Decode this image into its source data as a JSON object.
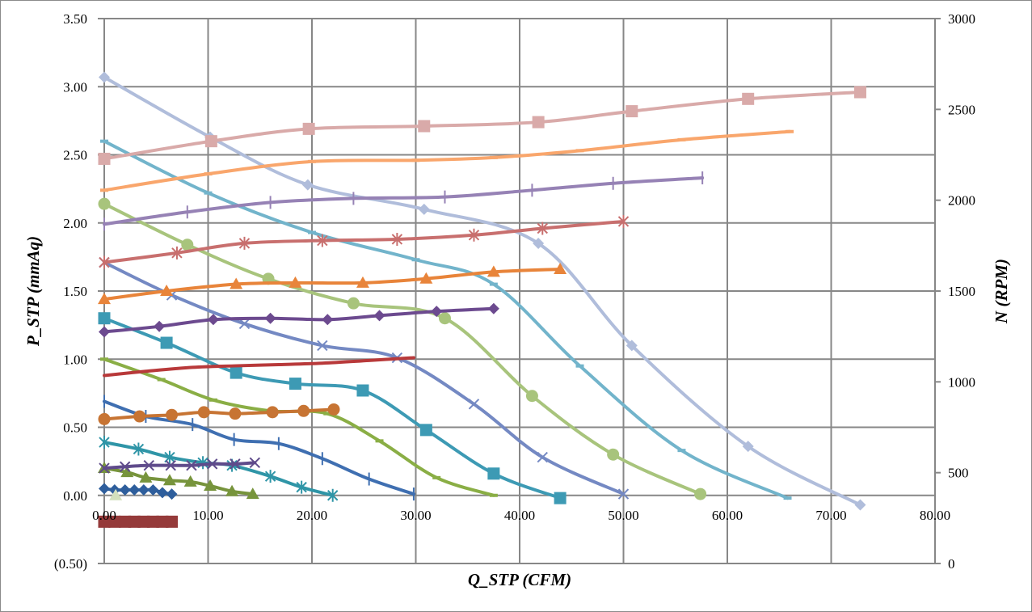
{
  "chart_data": {
    "type": "line",
    "smooth": true,
    "xlabel": "Q_STP (CFM)",
    "ylabel": "P_STP (mmAq)",
    "y2label": "N (RPM)",
    "xlim": [
      0,
      80
    ],
    "ylim": [
      -0.5,
      3.5
    ],
    "y2lim": [
      0,
      3000
    ],
    "xticks": [
      "0.00",
      "10.00",
      "20.00",
      "30.00",
      "40.00",
      "50.00",
      "60.00",
      "70.00",
      "80.00"
    ],
    "yticks": [
      "(0.50)",
      "0.00",
      "0.50",
      "1.00",
      "1.50",
      "2.00",
      "2.50",
      "3.00",
      "3.50"
    ],
    "y2ticks": [
      "0",
      "500",
      "1000",
      "1500",
      "2000",
      "2500",
      "3000"
    ],
    "negative_tick_color": "#ff0000",
    "grid": true,
    "legend": "none",
    "series": [
      {
        "axis": "left",
        "color": "#b0bddb",
        "marker": "diamond",
        "x": [
          0,
          10.2,
          19.6,
          30.8,
          41.8,
          50.8,
          62,
          72.8
        ],
        "y": [
          3.07,
          2.63,
          2.28,
          2.1,
          1.85,
          1.1,
          0.36,
          -0.07
        ]
      },
      {
        "axis": "left",
        "color": "#72b4cb",
        "marker": "dash",
        "x": [
          0,
          10,
          20,
          30,
          37.5,
          45.8,
          55.6,
          65.8
        ],
        "y": [
          2.6,
          2.22,
          1.93,
          1.73,
          1.55,
          0.95,
          0.33,
          -0.02
        ]
      },
      {
        "axis": "left",
        "color": "#a8c47c",
        "marker": "circle",
        "x": [
          0,
          8,
          15.8,
          24,
          32.8,
          41.2,
          49,
          57.4
        ],
        "y": [
          2.14,
          1.84,
          1.59,
          1.41,
          1.3,
          0.73,
          0.3,
          0.01
        ]
      },
      {
        "axis": "left",
        "color": "#7489c3",
        "marker": "x",
        "x": [
          0,
          6.5,
          13.5,
          21,
          28.2,
          35.6,
          42.2,
          50
        ],
        "y": [
          1.71,
          1.47,
          1.26,
          1.1,
          1.01,
          0.67,
          0.28,
          0.01
        ]
      },
      {
        "axis": "left",
        "color": "#3d9ab4",
        "marker": "square",
        "x": [
          0,
          6,
          12.7,
          18.4,
          24.9,
          31,
          37.5,
          43.9
        ],
        "y": [
          1.3,
          1.12,
          0.9,
          0.82,
          0.77,
          0.48,
          0.16,
          -0.02
        ]
      },
      {
        "axis": "left",
        "color": "#8aae45",
        "marker": "dash",
        "x": [
          0,
          5.5,
          10.5,
          16,
          21.5,
          26.5,
          32,
          37.5
        ],
        "y": [
          1.0,
          0.85,
          0.7,
          0.62,
          0.6,
          0.4,
          0.13,
          0.0
        ]
      },
      {
        "axis": "left",
        "color": "#3f6fb1",
        "marker": "plus",
        "x": [
          0,
          4,
          8.5,
          12.5,
          16.8,
          21,
          25.5,
          29.8
        ],
        "y": [
          0.69,
          0.58,
          0.52,
          0.41,
          0.38,
          0.27,
          0.12,
          0.01
        ]
      },
      {
        "axis": "left",
        "color": "#2f95a7",
        "marker": "asterisk",
        "x": [
          0,
          3.3,
          6.3,
          9.5,
          12.3,
          16,
          19,
          22
        ],
        "y": [
          0.39,
          0.34,
          0.28,
          0.24,
          0.22,
          0.14,
          0.06,
          0.0
        ]
      },
      {
        "axis": "left",
        "color": "#77943c",
        "marker": "triangle",
        "x": [
          0,
          2.2,
          4,
          6.3,
          8.3,
          10.2,
          12.3,
          14.3
        ],
        "y": [
          0.2,
          0.17,
          0.13,
          0.11,
          0.1,
          0.07,
          0.03,
          0.01
        ]
      },
      {
        "axis": "left",
        "color": "#2e5e9c",
        "marker": "diamond",
        "x": [
          0,
          1,
          2,
          2.9,
          3.8,
          4.7,
          5.6,
          6.5
        ],
        "y": [
          0.05,
          0.04,
          0.04,
          0.04,
          0.04,
          0.04,
          0.02,
          0.01
        ]
      },
      {
        "axis": "left",
        "color": "#d3e0bd",
        "marker": "triangle",
        "x": [
          1.1
        ],
        "y": [
          0.0
        ]
      },
      {
        "axis": "right",
        "color": "#d9aaa9",
        "marker": "square",
        "x": [
          0,
          10.3,
          19.7,
          30.8,
          41.8,
          50.8,
          62,
          72.8
        ],
        "y": [
          2228,
          2325,
          2393,
          2408,
          2430,
          2490,
          2558,
          2595
        ]
      },
      {
        "axis": "right",
        "color": "#f9a66c",
        "marker": "dash",
        "x": [
          0,
          10,
          20,
          30,
          37.5,
          45.8,
          55.6,
          66
        ],
        "y": [
          2055,
          2145,
          2213,
          2220,
          2235,
          2273,
          2333,
          2378
        ]
      },
      {
        "axis": "right",
        "color": "#9682b5",
        "marker": "plus",
        "x": [
          0,
          8,
          16,
          24,
          32.8,
          41.2,
          49,
          57.6
        ],
        "y": [
          1868,
          1935,
          1988,
          2010,
          2018,
          2055,
          2093,
          2123
        ]
      },
      {
        "axis": "right",
        "color": "#c86f6e",
        "marker": "asterisk",
        "x": [
          0,
          7,
          13.5,
          21,
          28.2,
          35.6,
          42.2,
          50
        ],
        "y": [
          1658,
          1710,
          1763,
          1778,
          1785,
          1808,
          1845,
          1883
        ]
      },
      {
        "axis": "right",
        "color": "#e8843a",
        "marker": "triangle",
        "x": [
          0,
          6,
          12.7,
          18.4,
          24.9,
          31,
          37.5,
          43.9
        ],
        "y": [
          1455,
          1500,
          1538,
          1545,
          1545,
          1568,
          1605,
          1620
        ]
      },
      {
        "axis": "right",
        "color": "#6c4a8f",
        "marker": "diamond",
        "x": [
          0,
          5.3,
          10.5,
          16,
          21.5,
          26.5,
          32,
          37.5
        ],
        "y": [
          1275,
          1305,
          1343,
          1350,
          1343,
          1365,
          1388,
          1403
        ]
      },
      {
        "axis": "right",
        "color": "#b8393a",
        "marker": "none",
        "x": [
          0,
          4,
          8.5,
          12.5,
          16.8,
          21,
          25.5,
          29.8
        ],
        "y": [
          1035,
          1058,
          1080,
          1088,
          1095,
          1103,
          1118,
          1133
        ]
      },
      {
        "axis": "right",
        "color": "#c77433",
        "marker": "circle",
        "x": [
          0,
          3.4,
          6.5,
          9.6,
          12.6,
          16.2,
          19.2,
          22.1
        ],
        "y": [
          795,
          810,
          818,
          833,
          825,
          833,
          840,
          848
        ]
      },
      {
        "axis": "right",
        "color": "#5f4b8b",
        "marker": "x",
        "x": [
          0,
          2,
          4.3,
          6.4,
          8.4,
          10.4,
          12.6,
          14.5
        ],
        "y": [
          525,
          533,
          540,
          540,
          540,
          548,
          548,
          555
        ]
      },
      {
        "axis": "right",
        "color": "#953a3a",
        "marker": "square",
        "x": [
          0,
          1,
          2,
          2.9,
          3.8,
          4.7,
          5.6,
          6.5
        ],
        "y": [
          230,
          230,
          230,
          230,
          230,
          230,
          230,
          230
        ]
      }
    ]
  }
}
